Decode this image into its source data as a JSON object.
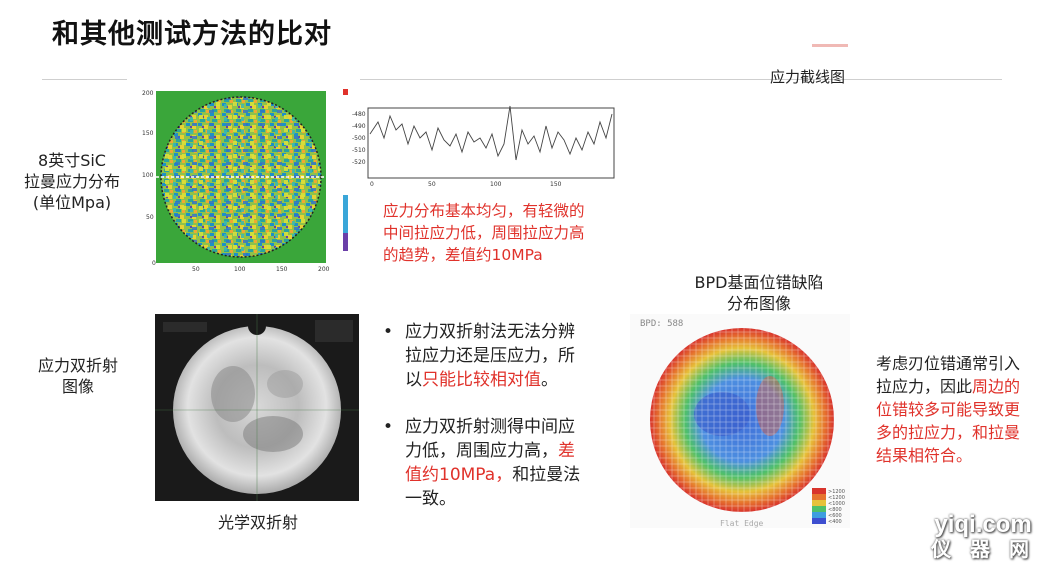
{
  "title": "和其他测试方法的比对",
  "stress_profile_label": "应力截线图",
  "raman": {
    "label_lines": [
      "8英寸SiC",
      "拉曼应力分布",
      "(单位Mpa)"
    ],
    "observation_lines": [
      "应力分布基本均匀，有轻微的",
      "中间拉应力低，周围拉应力高",
      "的趋势，差值约10MPa"
    ]
  },
  "birefringence": {
    "label_lines": [
      "应力双折射",
      "图像"
    ],
    "caption": "光学双折射",
    "bullet1": {
      "lines": [
        "应力双折射法无法分辨",
        "拉应力还是压应力，所"
      ],
      "line3_plain": "以",
      "line3_red": "只能比较相对值",
      "line3_end": "。"
    },
    "bullet2": {
      "line1": "应力双折射测得中间应",
      "line2_plain": "力低，周围应力高，",
      "line2_red": "差",
      "line3_red": "值约10MPa，",
      "line3_plain": "和拉曼法",
      "line4": "一致。"
    }
  },
  "bpd": {
    "title_lines": [
      "BPD基面位错缺陷",
      "分布图像"
    ],
    "conclusion": {
      "line1": "考虑刃位错通常引入",
      "line2_plain": "拉应力，因此",
      "line2_red": "周边的",
      "line3_red": "位错较多可能导致更",
      "line4_red": "多的拉应力，和拉曼",
      "line5_red": "结果相符合。"
    }
  },
  "watermark": {
    "site": "yiqi.com",
    "chars": "仪 器 网"
  },
  "colors": {
    "accent_red": "#e0322b",
    "rule_gray": "#cfcfcf",
    "map_green": "#3aa63a"
  }
}
